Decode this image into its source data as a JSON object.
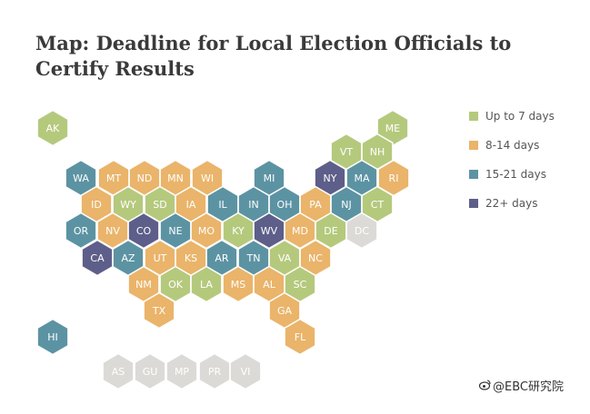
{
  "title": "Map: Deadline for Local Election Officials to Certify Results",
  "legend": [
    {
      "key": "a",
      "label": "Up to 7 days",
      "color": "#b5c97d"
    },
    {
      "key": "b",
      "label": "8-14 days",
      "color": "#eab46a"
    },
    {
      "key": "c",
      "label": "15-21 days",
      "color": "#5c93a3"
    },
    {
      "key": "d",
      "label": "22+ days",
      "color": "#5e5e8a"
    }
  ],
  "na_color": "#dcdad6",
  "watermark": {
    "icon": "weibo-icon",
    "text": "@EBC研究院"
  },
  "states": [
    {
      "code": "AK",
      "cat": "a"
    },
    {
      "code": "ME",
      "cat": "a"
    },
    {
      "code": "VT",
      "cat": "a"
    },
    {
      "code": "NH",
      "cat": "a"
    },
    {
      "code": "WA",
      "cat": "c"
    },
    {
      "code": "MT",
      "cat": "b"
    },
    {
      "code": "ND",
      "cat": "b"
    },
    {
      "code": "MN",
      "cat": "b"
    },
    {
      "code": "WI",
      "cat": "b"
    },
    {
      "code": "MI",
      "cat": "c"
    },
    {
      "code": "NY",
      "cat": "d"
    },
    {
      "code": "MA",
      "cat": "c"
    },
    {
      "code": "RI",
      "cat": "b"
    },
    {
      "code": "ID",
      "cat": "b"
    },
    {
      "code": "WY",
      "cat": "a"
    },
    {
      "code": "SD",
      "cat": "a"
    },
    {
      "code": "IA",
      "cat": "b"
    },
    {
      "code": "IL",
      "cat": "c"
    },
    {
      "code": "IN",
      "cat": "c"
    },
    {
      "code": "OH",
      "cat": "c"
    },
    {
      "code": "PA",
      "cat": "b"
    },
    {
      "code": "NJ",
      "cat": "c"
    },
    {
      "code": "CT",
      "cat": "a"
    },
    {
      "code": "OR",
      "cat": "c"
    },
    {
      "code": "NV",
      "cat": "b"
    },
    {
      "code": "CO",
      "cat": "d"
    },
    {
      "code": "NE",
      "cat": "c"
    },
    {
      "code": "MO",
      "cat": "b"
    },
    {
      "code": "KY",
      "cat": "a"
    },
    {
      "code": "WV",
      "cat": "d"
    },
    {
      "code": "MD",
      "cat": "b"
    },
    {
      "code": "DE",
      "cat": "a"
    },
    {
      "code": "DC",
      "cat": "na"
    },
    {
      "code": "CA",
      "cat": "d"
    },
    {
      "code": "AZ",
      "cat": "c"
    },
    {
      "code": "UT",
      "cat": "b"
    },
    {
      "code": "KS",
      "cat": "b"
    },
    {
      "code": "AR",
      "cat": "c"
    },
    {
      "code": "TN",
      "cat": "c"
    },
    {
      "code": "VA",
      "cat": "a"
    },
    {
      "code": "NC",
      "cat": "b"
    },
    {
      "code": "NM",
      "cat": "b"
    },
    {
      "code": "OK",
      "cat": "a"
    },
    {
      "code": "LA",
      "cat": "a"
    },
    {
      "code": "MS",
      "cat": "b"
    },
    {
      "code": "AL",
      "cat": "b"
    },
    {
      "code": "SC",
      "cat": "a"
    },
    {
      "code": "TX",
      "cat": "b"
    },
    {
      "code": "GA",
      "cat": "b"
    },
    {
      "code": "FL",
      "cat": "b"
    },
    {
      "code": "HI",
      "cat": "c"
    },
    {
      "code": "AS",
      "cat": "na"
    },
    {
      "code": "GU",
      "cat": "na"
    },
    {
      "code": "MP",
      "cat": "na"
    },
    {
      "code": "PR",
      "cat": "na"
    },
    {
      "code": "VI",
      "cat": "na"
    }
  ]
}
